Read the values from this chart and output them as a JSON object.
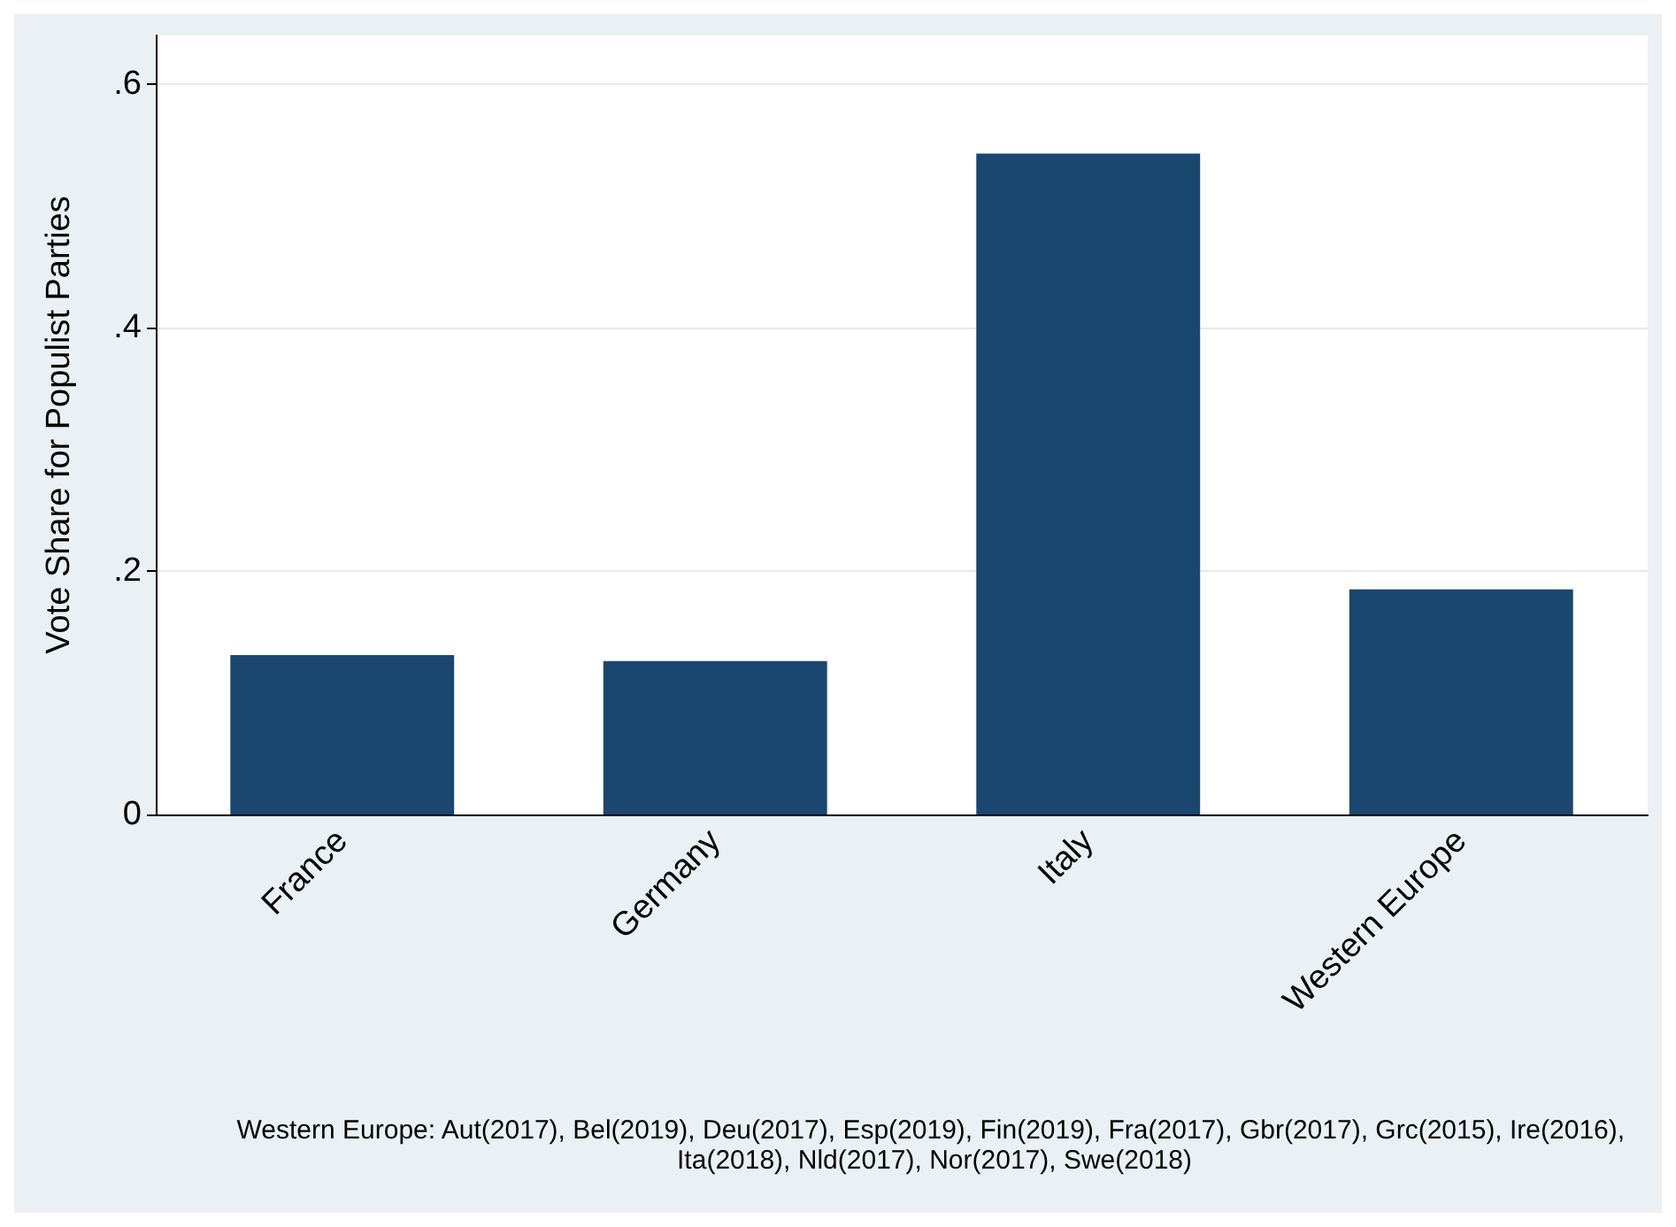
{
  "chart_data": {
    "type": "bar",
    "ylabel": "Vote Share for Populist Parties",
    "categories": [
      "France",
      "Germany",
      "Italy",
      "Western Europe"
    ],
    "values": [
      0.131,
      0.126,
      0.543,
      0.185
    ],
    "color": "#1a476f",
    "ylim": [
      0,
      0.64
    ],
    "yticks": [
      0,
      {
        "value": 0.2,
        "label": ".2"
      },
      {
        "value": 0.4,
        "label": ".4"
      },
      {
        "value": 0.6,
        "label": ".6"
      }
    ],
    "grid": "y",
    "annotations": [
      "Western Europe: Aut(2017), Bel(2019), Deu(2017), Esp(2019), Fin(2019), Fra(2017), Gbr(2017), Grc(2015), Ire(2016), Ita(2018), Nld(2017), Nor(2017), Swe(2018)"
    ]
  }
}
